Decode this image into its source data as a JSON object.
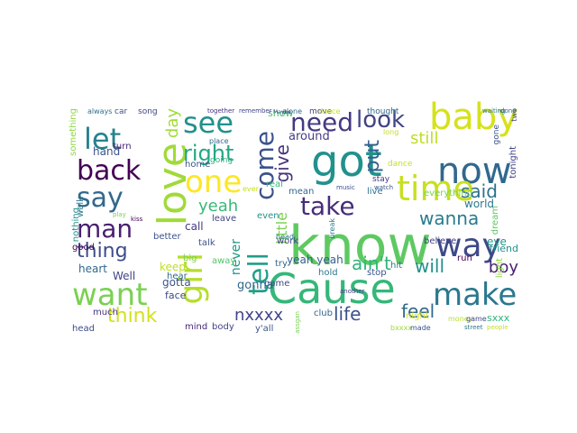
{
  "palette": {
    "dark_purple": "#440154",
    "indigo": "#3b528b",
    "blue": "#31688e",
    "teal": "#21918c",
    "green": "#35b779",
    "light_green": "#5ec962",
    "lime": "#90d743",
    "yellow": "#c7e020"
  },
  "words": [
    {
      "text": "know",
      "color": "#5ec962"
    },
    {
      "text": "Cause",
      "color": "#35b779"
    },
    {
      "text": "got",
      "color": "#21918c"
    },
    {
      "text": "now",
      "color": "#31688e"
    },
    {
      "text": "love",
      "color": "#a0da39"
    },
    {
      "text": "baby",
      "color": "#d5e21a"
    },
    {
      "text": "want",
      "color": "#7ad151"
    },
    {
      "text": "girl",
      "color": "#b5de2b"
    },
    {
      "text": "time",
      "color": "#c7e020"
    },
    {
      "text": "way",
      "color": "#3e4989"
    },
    {
      "text": "make",
      "color": "#2a788e"
    },
    {
      "text": "one",
      "color": "#fde725"
    },
    {
      "text": "see",
      "color": "#21918c"
    },
    {
      "text": "let",
      "color": "#26828e"
    },
    {
      "text": "say",
      "color": "#31688e"
    },
    {
      "text": "back",
      "color": "#440154"
    },
    {
      "text": "man",
      "color": "#481f70"
    },
    {
      "text": "come",
      "color": "#3b528b"
    },
    {
      "text": "take",
      "color": "#472d7b"
    },
    {
      "text": "tell",
      "color": "#1f9e89"
    },
    {
      "text": "need",
      "color": "#443983"
    },
    {
      "text": "look",
      "color": "#414487"
    },
    {
      "text": "right",
      "color": "#22a884"
    },
    {
      "text": "give",
      "color": "#46327e"
    },
    {
      "text": "put",
      "color": "#355f8d"
    },
    {
      "text": "said",
      "color": "#2c728e"
    },
    {
      "text": "wanna",
      "color": "#287c8e"
    },
    {
      "text": "thing",
      "color": "#3e4c8a"
    },
    {
      "text": "ain't",
      "color": "#2fb47c"
    },
    {
      "text": "will",
      "color": "#21918c"
    },
    {
      "text": "boy",
      "color": "#482173"
    },
    {
      "text": "life",
      "color": "#3b528b"
    },
    {
      "text": "feel",
      "color": "#31688e"
    },
    {
      "text": "think",
      "color": "#d2e21b"
    },
    {
      "text": "nxxxx",
      "color": "#414487"
    },
    {
      "text": "yeah",
      "color": "#38b977"
    },
    {
      "text": "day",
      "color": "#a2da37"
    },
    {
      "text": "still",
      "color": "#bddf26"
    },
    {
      "text": "never",
      "color": "#1f988b"
    },
    {
      "text": "hand",
      "color": "#3b528b"
    },
    {
      "text": "around",
      "color": "#433e85"
    },
    {
      "text": "world",
      "color": "#2a788e"
    },
    {
      "text": "yeah yeah",
      "color": "#355f8d"
    },
    {
      "text": "little",
      "color": "#7ad151"
    },
    {
      "text": "call",
      "color": "#443983"
    },
    {
      "text": "keep",
      "color": "#bddf26"
    },
    {
      "text": "gonna",
      "color": "#31688e"
    },
    {
      "text": "night",
      "color": "#d8e219"
    },
    {
      "text": "sxxx",
      "color": "#2fb47c"
    },
    {
      "text": "stop",
      "color": "#3b528b"
    },
    {
      "text": "hit",
      "color": "#2a788e"
    },
    {
      "text": "heart",
      "color": "#31688e"
    },
    {
      "text": "Well",
      "color": "#414487"
    },
    {
      "text": "gotta",
      "color": "#3b528b"
    },
    {
      "text": "face",
      "color": "#3e4989"
    },
    {
      "text": "show",
      "color": "#44bf70"
    },
    {
      "text": "turn",
      "color": "#482475"
    },
    {
      "text": "always",
      "color": "#2d708e"
    },
    {
      "text": "home",
      "color": "#3b528b"
    },
    {
      "text": "going",
      "color": "#2fb47c"
    },
    {
      "text": "leave",
      "color": "#414487"
    },
    {
      "text": "talk",
      "color": "#3b528b"
    },
    {
      "text": "away",
      "color": "#52c569"
    },
    {
      "text": "hear",
      "color": "#31688e"
    },
    {
      "text": "much",
      "color": "#46327e"
    },
    {
      "text": "mind",
      "color": "#482878"
    },
    {
      "text": "head",
      "color": "#3e4989"
    },
    {
      "text": "body",
      "color": "#414487"
    },
    {
      "text": "y'all",
      "color": "#3b528b"
    },
    {
      "text": "club",
      "color": "#31688e"
    },
    {
      "text": "hold",
      "color": "#2a788e"
    },
    {
      "text": "name",
      "color": "#3e4989"
    },
    {
      "text": "believe",
      "color": "#433e85"
    },
    {
      "text": "eye",
      "color": "#1f988b"
    },
    {
      "text": "run",
      "color": "#440154"
    },
    {
      "text": "friend",
      "color": "#21918c"
    },
    {
      "text": "everything",
      "color": "#7ad151"
    },
    {
      "text": "tonight",
      "color": "#414487"
    },
    {
      "text": "live",
      "color": "#2c728e"
    },
    {
      "text": "mean",
      "color": "#31688e"
    },
    {
      "text": "real",
      "color": "#35b779"
    },
    {
      "text": "even",
      "color": "#21918c"
    },
    {
      "text": "try",
      "color": "#31688e"
    },
    {
      "text": "work",
      "color": "#433e85"
    },
    {
      "text": "better",
      "color": "#3b528b"
    },
    {
      "text": "big",
      "color": "#7ad151"
    },
    {
      "text": "good",
      "color": "#440154"
    },
    {
      "text": "walk",
      "color": "#2a788e"
    },
    {
      "text": "nothing",
      "color": "#21918c"
    },
    {
      "text": "something",
      "color": "#90d743"
    },
    {
      "text": "car",
      "color": "#3b528b"
    },
    {
      "text": "song",
      "color": "#414487"
    },
    {
      "text": "thought",
      "color": "#31688e"
    },
    {
      "text": "light",
      "color": "#90d743"
    },
    {
      "text": "dream",
      "color": "#5ec962"
    },
    {
      "text": "gone",
      "color": "#3b528b"
    },
    {
      "text": "move",
      "color": "#414487"
    },
    {
      "text": "alone",
      "color": "#31688e"
    },
    {
      "text": "dance",
      "color": "#c7e020"
    },
    {
      "text": "dance",
      "color": "#c7e020"
    },
    {
      "text": "stay",
      "color": "#443983"
    },
    {
      "text": "long",
      "color": "#c7e020"
    },
    {
      "text": "break",
      "color": "#2a788e"
    },
    {
      "text": "money",
      "color": "#b5de2b"
    },
    {
      "text": "game",
      "color": "#3e4989"
    },
    {
      "text": "assgan",
      "color": "#7ad151"
    },
    {
      "text": "bxxxx",
      "color": "#a0da39"
    },
    {
      "text": "made",
      "color": "#3b528b"
    },
    {
      "text": "two",
      "color": "#414487"
    },
    {
      "text": "done",
      "color": "#31688e"
    },
    {
      "text": "Maybe",
      "color": "#3b528b"
    },
    {
      "text": "waiting",
      "color": "#2a788e"
    },
    {
      "text": "together",
      "color": "#46327e"
    },
    {
      "text": "remember",
      "color": "#414487"
    },
    {
      "text": "watch",
      "color": "#3b528b"
    },
    {
      "text": "street",
      "color": "#2a788e"
    },
    {
      "text": "people",
      "color": "#c7e020"
    },
    {
      "text": "play",
      "color": "#7ad151"
    },
    {
      "text": "kiss",
      "color": "#440154"
    },
    {
      "text": "music",
      "color": "#3b528b"
    },
    {
      "text": "another",
      "color": "#414487"
    },
    {
      "text": "place",
      "color": "#31688e"
    },
    {
      "text": "ever",
      "color": "#c7e020"
    },
    {
      "text": "head",
      "color": "#2a788e"
    }
  ]
}
